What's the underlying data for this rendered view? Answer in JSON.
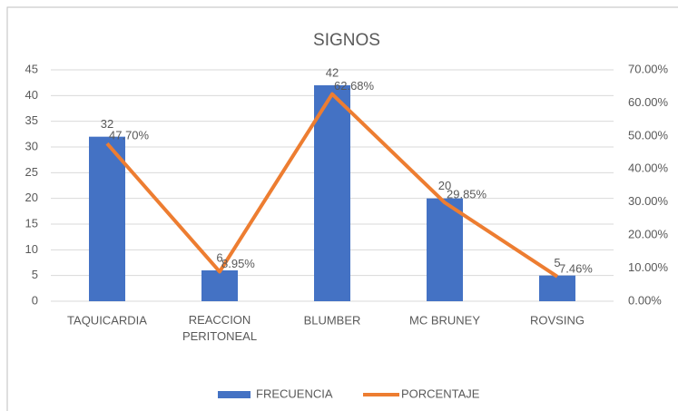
{
  "chart_data": {
    "type": "bar",
    "title": "SIGNOS",
    "categories": [
      "TAQUICARDIA",
      "REACCION PERITONEAL",
      "BLUMBER",
      "MC BRUNEY",
      "ROVSING"
    ],
    "series": [
      {
        "name": "FRECUENCIA",
        "type": "bar",
        "color": "#4472c4",
        "values": [
          32,
          6,
          42,
          20,
          5
        ]
      },
      {
        "name": "PORCENTAJE",
        "type": "line",
        "axis": "y2",
        "color": "#ed7d31",
        "values": [
          47.7,
          8.95,
          62.68,
          29.85,
          7.46
        ],
        "value_labels": [
          "47.70%",
          "8.95%",
          "62.68%",
          "29.85%",
          "7.46%"
        ]
      }
    ],
    "ylim": [
      0,
      45
    ],
    "yticks": [
      0,
      5,
      10,
      15,
      20,
      25,
      30,
      35,
      40,
      45
    ],
    "y2lim": [
      0,
      70
    ],
    "y2ticks": [
      {
        "value": 0,
        "label": "0.00%"
      },
      {
        "value": 10,
        "label": "10.00%"
      },
      {
        "value": 20,
        "label": "20.00%"
      },
      {
        "value": 30,
        "label": "30.00%"
      },
      {
        "value": 40,
        "label": "40.00%"
      },
      {
        "value": 50,
        "label": "50.00%"
      },
      {
        "value": 60,
        "label": "60.00%"
      },
      {
        "value": 70,
        "label": "70.00%"
      }
    ],
    "grid": true,
    "legend": "bottom"
  }
}
